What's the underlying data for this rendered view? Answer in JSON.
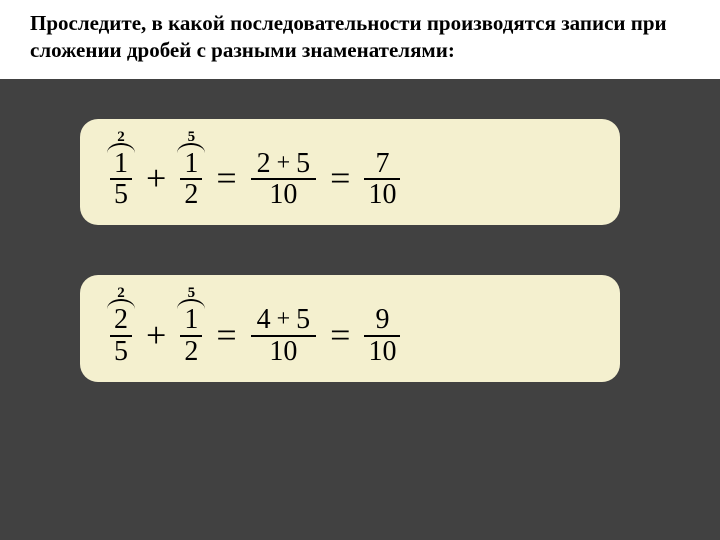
{
  "header": {
    "text": "Проследите, в какой последовательности производятся записи при сложении дробей с разными знаменателями:"
  },
  "colors": {
    "page_bg": "#414141",
    "header_bg": "#ffffff",
    "box_bg": "#f4f0cf",
    "text": "#000000"
  },
  "equations": [
    {
      "frac1": {
        "mult": "2",
        "num": "1",
        "den": "5"
      },
      "op1": "+",
      "frac2": {
        "mult": "5",
        "num": "1",
        "den": "2"
      },
      "eq1": "=",
      "step": {
        "a": "2",
        "op": "+",
        "b": "5",
        "den": "10"
      },
      "eq2": "=",
      "result": {
        "num": "7",
        "den": "10"
      }
    },
    {
      "frac1": {
        "mult": "2",
        "num": "2",
        "den": "5"
      },
      "op1": "+",
      "frac2": {
        "mult": "5",
        "num": "1",
        "den": "2"
      },
      "eq1": "=",
      "step": {
        "a": "4",
        "op": "+",
        "b": "5",
        "den": "10"
      },
      "eq2": "=",
      "result": {
        "num": "9",
        "den": "10"
      }
    }
  ]
}
